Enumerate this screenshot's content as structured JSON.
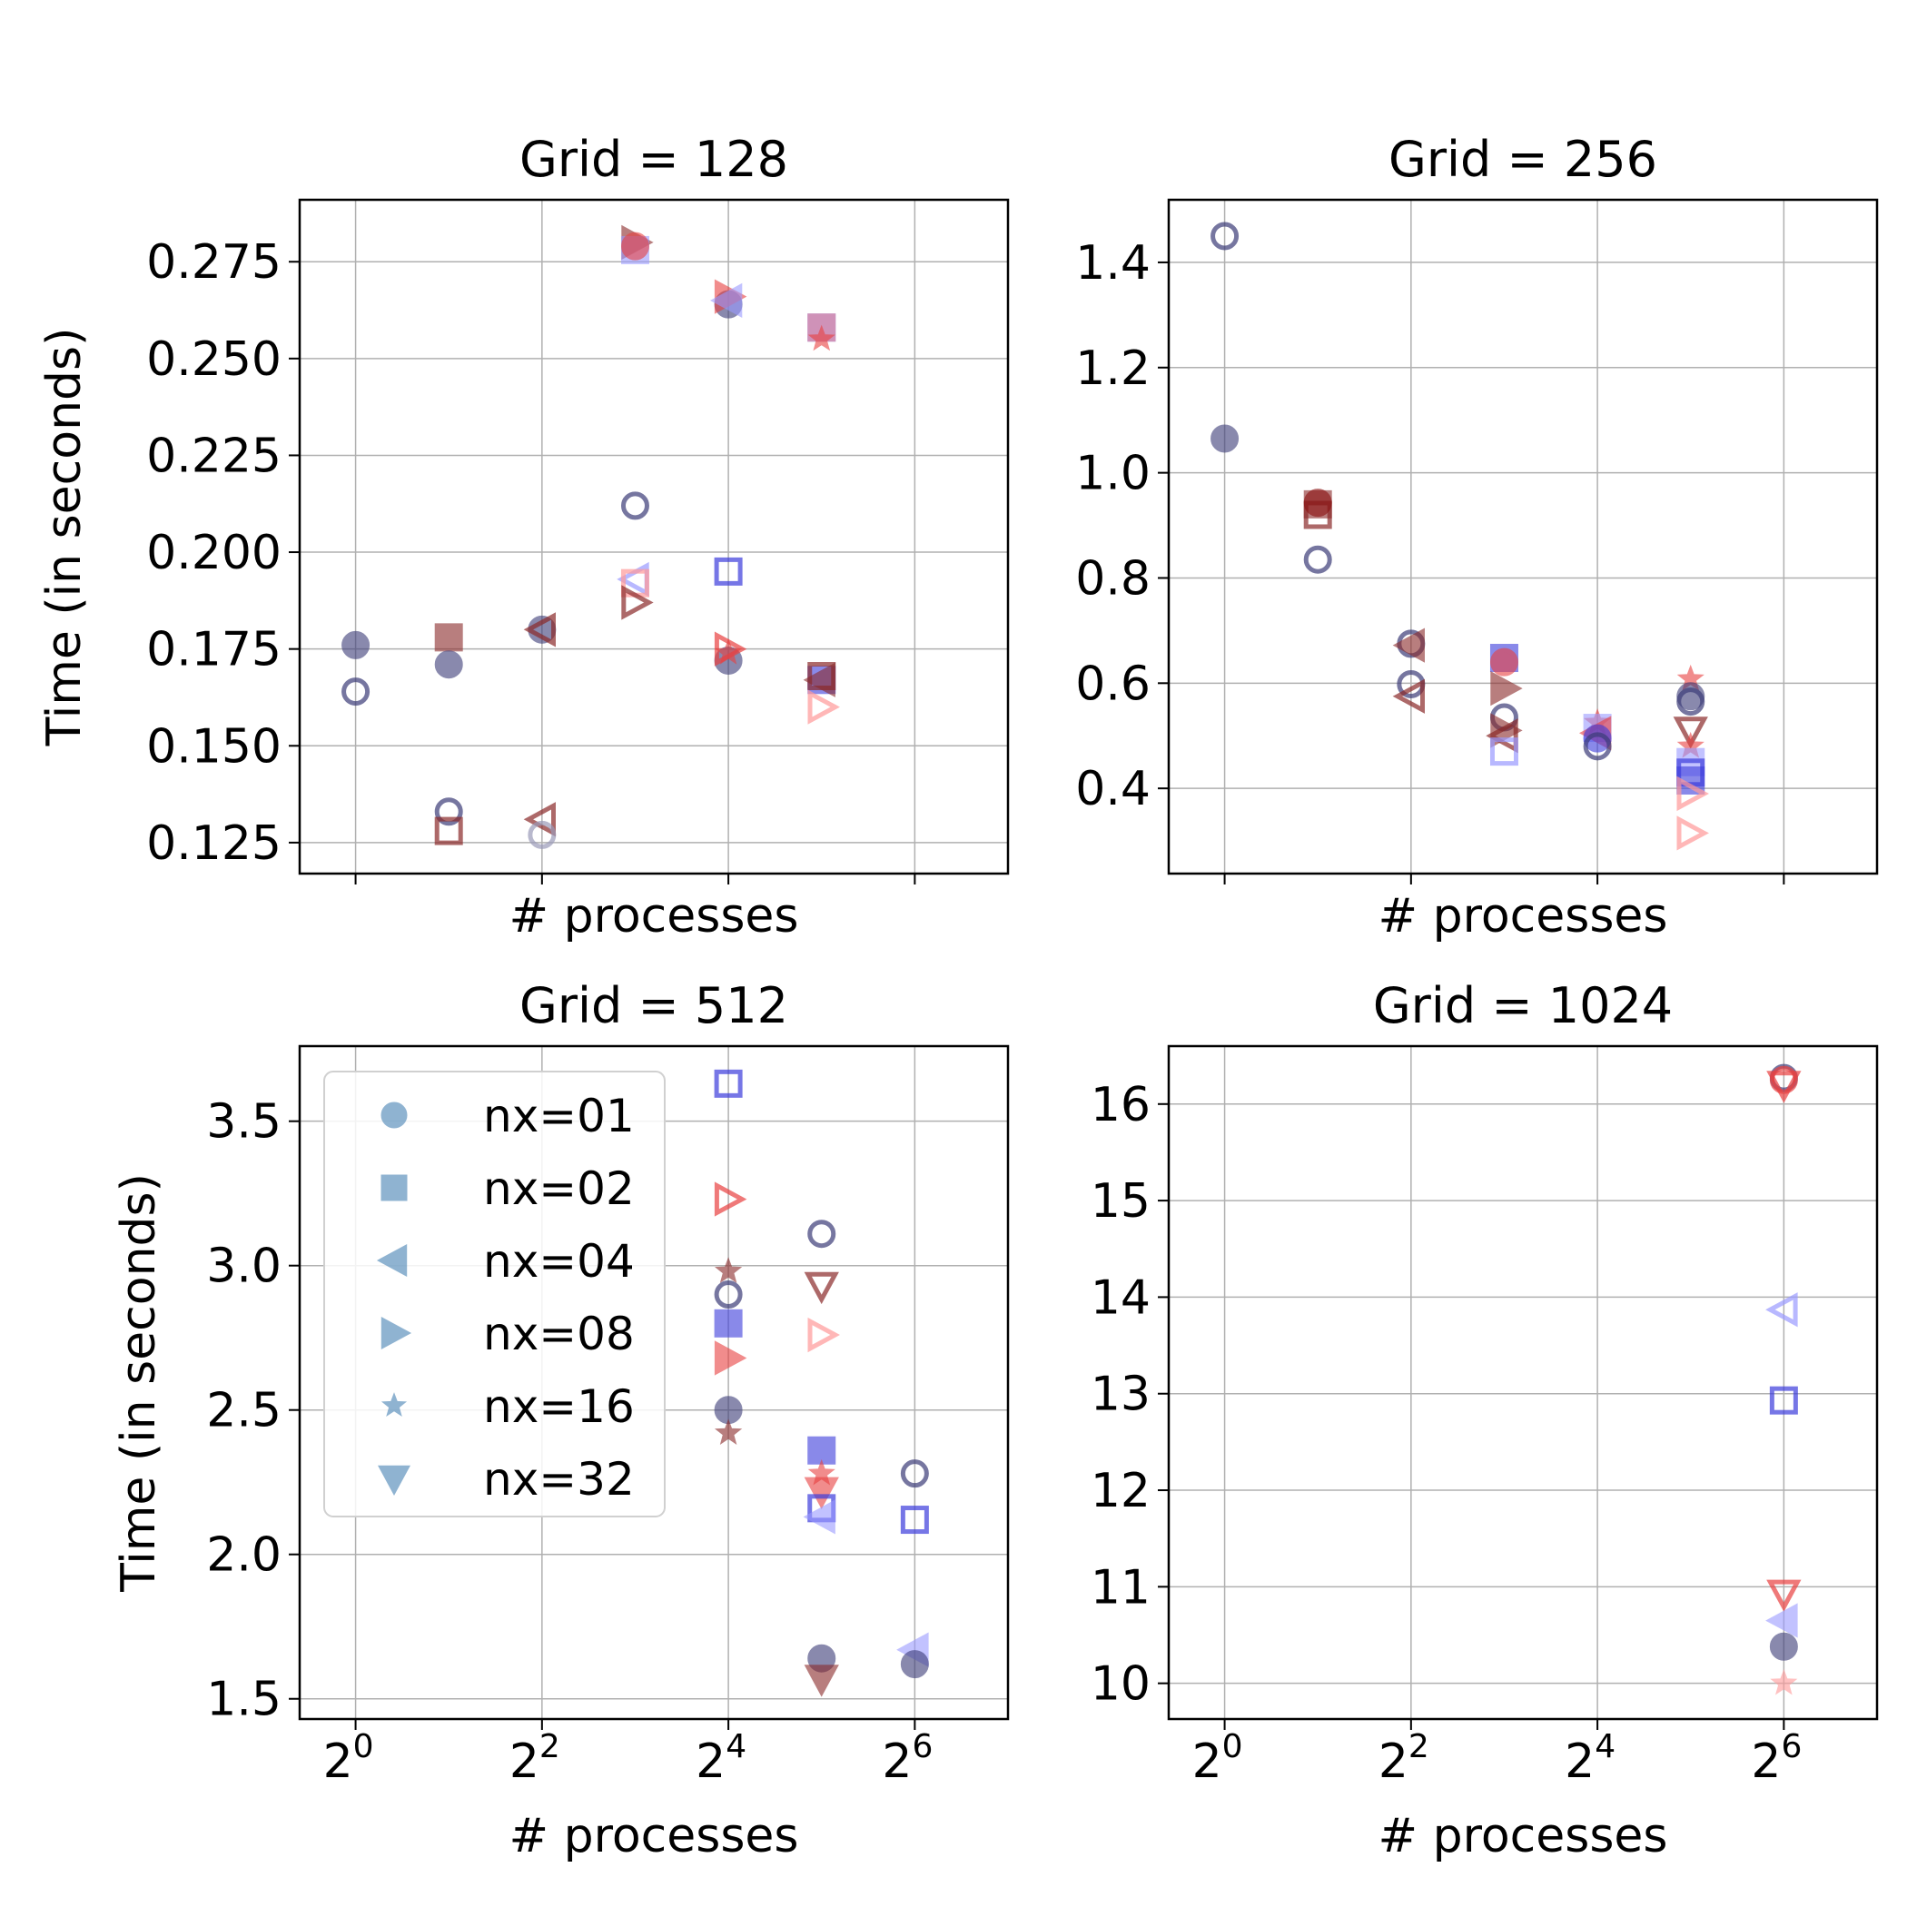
{
  "colors": {
    "circle": "#3c3c78",
    "square": "#3c3cdc",
    "tri_left": "#8a2a2a",
    "tri_right": "#e84040",
    "star": "#d23a3a",
    "tri_down": "#8a2a2a",
    "pink": "#ff9999",
    "legend": "#4682b4",
    "lavender": "#9a9aff"
  },
  "legend": {
    "entries": [
      {
        "label": "nx=01",
        "marker": "circle"
      },
      {
        "label": "nx=02",
        "marker": "square"
      },
      {
        "label": "nx=04",
        "marker": "tri_left"
      },
      {
        "label": "nx=08",
        "marker": "tri_right"
      },
      {
        "label": "nx=16",
        "marker": "star"
      },
      {
        "label": "nx=32",
        "marker": "tri_down"
      }
    ]
  },
  "chart_data": [
    {
      "type": "scatter",
      "title": "Grid = 128",
      "xlabel": "# processes",
      "ylabel": "Time (in seconds)",
      "xscale": "log2",
      "xlim_exp": [
        -0.6,
        7.0
      ],
      "xticks_exp": [
        0,
        2,
        4,
        6
      ],
      "show_xticklabels": false,
      "ylim": [
        0.117,
        0.291
      ],
      "yticks": [
        0.125,
        0.15,
        0.175,
        0.2,
        0.225,
        0.25,
        0.275
      ],
      "ytick_labels": [
        "0.125",
        "0.150",
        "0.175",
        "0.200",
        "0.225",
        "0.250",
        "0.275"
      ],
      "points": [
        {
          "x": 1,
          "y": 0.176,
          "m": "circle",
          "c": "#3c3c78",
          "f": true
        },
        {
          "x": 1,
          "y": 0.164,
          "m": "circle",
          "c": "#3c3c78",
          "f": false
        },
        {
          "x": 2,
          "y": 0.178,
          "m": "square",
          "c": "#8a2a2a",
          "f": true
        },
        {
          "x": 2,
          "y": 0.171,
          "m": "circle",
          "c": "#3c3c78",
          "f": true
        },
        {
          "x": 2,
          "y": 0.133,
          "m": "circle",
          "c": "#3c3c78",
          "f": false
        },
        {
          "x": 2,
          "y": 0.128,
          "m": "square",
          "c": "#8a2a2a",
          "f": false
        },
        {
          "x": 4,
          "y": 0.18,
          "m": "circle",
          "c": "#3c3c78",
          "f": true
        },
        {
          "x": 4,
          "y": 0.18,
          "m": "tri_left",
          "c": "#8a2a2a",
          "f": false
        },
        {
          "x": 4,
          "y": 0.131,
          "m": "tri_left",
          "c": "#8a2a2a",
          "f": false
        },
        {
          "x": 4,
          "y": 0.127,
          "m": "circle",
          "c": "#9a9ab8",
          "f": false
        },
        {
          "x": 8,
          "y": 0.28,
          "m": "tri_right",
          "c": "#8a2a2a",
          "f": true
        },
        {
          "x": 8,
          "y": 0.278,
          "m": "square",
          "c": "#9a9aff",
          "f": true
        },
        {
          "x": 8,
          "y": 0.279,
          "m": "circle",
          "c": "#e84040",
          "f": true
        },
        {
          "x": 8,
          "y": 0.212,
          "m": "circle",
          "c": "#3c3c78",
          "f": false
        },
        {
          "x": 8,
          "y": 0.193,
          "m": "tri_left",
          "c": "#9a9aff",
          "f": false
        },
        {
          "x": 8,
          "y": 0.192,
          "m": "square",
          "c": "#ff9999",
          "f": false
        },
        {
          "x": 8,
          "y": 0.187,
          "m": "tri_right",
          "c": "#8a2a2a",
          "f": false
        },
        {
          "x": 16,
          "y": 0.264,
          "m": "circle",
          "c": "#3c3c78",
          "f": true
        },
        {
          "x": 16,
          "y": 0.266,
          "m": "tri_right",
          "c": "#e84040",
          "f": true
        },
        {
          "x": 16,
          "y": 0.265,
          "m": "tri_left",
          "c": "#9a9aff",
          "f": true
        },
        {
          "x": 16,
          "y": 0.195,
          "m": "square",
          "c": "#3c3cdc",
          "f": false
        },
        {
          "x": 16,
          "y": 0.172,
          "m": "circle",
          "c": "#3c3c78",
          "f": true
        },
        {
          "x": 16,
          "y": 0.174,
          "m": "star",
          "c": "#e84040",
          "f": true
        },
        {
          "x": 16,
          "y": 0.175,
          "m": "tri_right",
          "c": "#e84040",
          "f": false
        },
        {
          "x": 32,
          "y": 0.258,
          "m": "square",
          "c": "#3c3cdc",
          "f": true
        },
        {
          "x": 32,
          "y": 0.258,
          "m": "square",
          "c": "#ff9999",
          "f": true
        },
        {
          "x": 32,
          "y": 0.255,
          "m": "star",
          "c": "#e84040",
          "f": true
        },
        {
          "x": 32,
          "y": 0.167,
          "m": "square",
          "c": "#3c3cdc",
          "f": true
        },
        {
          "x": 32,
          "y": 0.168,
          "m": "square",
          "c": "#8a2a2a",
          "f": false
        },
        {
          "x": 32,
          "y": 0.167,
          "m": "tri_left",
          "c": "#8a2a2a",
          "f": true
        },
        {
          "x": 32,
          "y": 0.16,
          "m": "tri_right",
          "c": "#ff9999",
          "f": false
        }
      ]
    },
    {
      "type": "scatter",
      "title": "Grid = 256",
      "xlabel": "# processes",
      "ylabel": "",
      "xscale": "log2",
      "xlim_exp": [
        -0.6,
        7.0
      ],
      "xticks_exp": [
        0,
        2,
        4,
        6
      ],
      "show_xticklabels": false,
      "ylim": [
        0.238,
        1.519
      ],
      "yticks": [
        0.4,
        0.6,
        0.8,
        1.0,
        1.2,
        1.4
      ],
      "ytick_labels": [
        "0.4",
        "0.6",
        "0.8",
        "1.0",
        "1.2",
        "1.4"
      ],
      "points": [
        {
          "x": 1,
          "y": 1.45,
          "m": "circle",
          "c": "#3c3c78",
          "f": false
        },
        {
          "x": 1,
          "y": 1.065,
          "m": "circle",
          "c": "#3c3c78",
          "f": true
        },
        {
          "x": 2,
          "y": 0.94,
          "m": "square",
          "c": "#8a2a2a",
          "f": true
        },
        {
          "x": 2,
          "y": 0.92,
          "m": "square",
          "c": "#8a2a2a",
          "f": false
        },
        {
          "x": 2,
          "y": 0.943,
          "m": "circle",
          "c": "#8a1010",
          "f": true
        },
        {
          "x": 2,
          "y": 0.835,
          "m": "circle",
          "c": "#3c3c78",
          "f": false
        },
        {
          "x": 4,
          "y": 0.675,
          "m": "circle",
          "c": "#3c3c78",
          "f": false
        },
        {
          "x": 4,
          "y": 0.672,
          "m": "tri_left",
          "c": "#8a2a2a",
          "f": true
        },
        {
          "x": 4,
          "y": 0.598,
          "m": "circle",
          "c": "#3c3c78",
          "f": false
        },
        {
          "x": 4,
          "y": 0.575,
          "m": "tri_left",
          "c": "#8a2a2a",
          "f": false
        },
        {
          "x": 8,
          "y": 0.648,
          "m": "square",
          "c": "#3c3cdc",
          "f": true
        },
        {
          "x": 8,
          "y": 0.64,
          "m": "circle",
          "c": "#e84040",
          "f": true
        },
        {
          "x": 8,
          "y": 0.59,
          "m": "tri_right",
          "c": "#8a2a2a",
          "f": true
        },
        {
          "x": 8,
          "y": 0.535,
          "m": "circle",
          "c": "#3c3c78",
          "f": false
        },
        {
          "x": 8,
          "y": 0.51,
          "m": "tri_right",
          "c": "#8a2a2a",
          "f": true
        },
        {
          "x": 8,
          "y": 0.5,
          "m": "tri_left",
          "c": "#8a2a2a",
          "f": false
        },
        {
          "x": 8,
          "y": 0.47,
          "m": "square",
          "c": "#9a9aff",
          "f": false
        },
        {
          "x": 16,
          "y": 0.525,
          "m": "star",
          "c": "#e84040",
          "f": true
        },
        {
          "x": 16,
          "y": 0.515,
          "m": "square",
          "c": "#9a9aff",
          "f": true
        },
        {
          "x": 16,
          "y": 0.505,
          "m": "tri_left",
          "c": "#e84040",
          "f": true
        },
        {
          "x": 16,
          "y": 0.495,
          "m": "circle",
          "c": "#3c3cdc",
          "f": true
        },
        {
          "x": 16,
          "y": 0.48,
          "m": "circle",
          "c": "#3c3c78",
          "f": false
        },
        {
          "x": 32,
          "y": 0.608,
          "m": "star",
          "c": "#e84040",
          "f": true
        },
        {
          "x": 32,
          "y": 0.575,
          "m": "circle",
          "c": "#3c3c78",
          "f": true
        },
        {
          "x": 32,
          "y": 0.565,
          "m": "circle",
          "c": "#3c3c78",
          "f": false
        },
        {
          "x": 32,
          "y": 0.51,
          "m": "tri_down",
          "c": "#8a2a2a",
          "f": false
        },
        {
          "x": 32,
          "y": 0.48,
          "m": "star",
          "c": "#e84040",
          "f": true
        },
        {
          "x": 32,
          "y": 0.45,
          "m": "square",
          "c": "#9a9aff",
          "f": true
        },
        {
          "x": 32,
          "y": 0.43,
          "m": "square",
          "c": "#3c3cdc",
          "f": false
        },
        {
          "x": 32,
          "y": 0.415,
          "m": "square",
          "c": "#3c3cdc",
          "f": true
        },
        {
          "x": 32,
          "y": 0.39,
          "m": "tri_right",
          "c": "#ff9999",
          "f": false
        },
        {
          "x": 32,
          "y": 0.315,
          "m": "tri_right",
          "c": "#ff9999",
          "f": false
        }
      ]
    },
    {
      "type": "scatter",
      "title": "Grid = 512",
      "xlabel": "# processes",
      "ylabel": "Time (in seconds)",
      "xscale": "log2",
      "xlim_exp": [
        -0.6,
        7.0
      ],
      "xticks_exp": [
        0,
        2,
        4,
        6
      ],
      "show_xticklabels": true,
      "xtick_base": "2",
      "xtick_exps": [
        "0",
        "2",
        "4",
        "6"
      ],
      "ylim": [
        1.43,
        3.76
      ],
      "yticks": [
        1.5,
        2.0,
        2.5,
        3.0,
        3.5
      ],
      "ytick_labels": [
        "1.5",
        "2.0",
        "2.5",
        "3.0",
        "3.5"
      ],
      "points": [
        {
          "x": 16,
          "y": 3.63,
          "m": "square",
          "c": "#3c3cdc",
          "f": false
        },
        {
          "x": 16,
          "y": 3.23,
          "m": "tri_right",
          "c": "#e84040",
          "f": false
        },
        {
          "x": 16,
          "y": 2.98,
          "m": "star",
          "c": "#8a2a2a",
          "f": true
        },
        {
          "x": 16,
          "y": 2.9,
          "m": "circle",
          "c": "#3c3c78",
          "f": false
        },
        {
          "x": 16,
          "y": 2.8,
          "m": "square",
          "c": "#3c3cdc",
          "f": true
        },
        {
          "x": 16,
          "y": 2.68,
          "m": "tri_right",
          "c": "#e84040",
          "f": true
        },
        {
          "x": 16,
          "y": 2.5,
          "m": "circle",
          "c": "#3c3c78",
          "f": true
        },
        {
          "x": 16,
          "y": 2.42,
          "m": "star",
          "c": "#8a2a2a",
          "f": true
        },
        {
          "x": 32,
          "y": 3.11,
          "m": "circle",
          "c": "#3c3c78",
          "f": false
        },
        {
          "x": 32,
          "y": 2.93,
          "m": "tri_down",
          "c": "#8a2a2a",
          "f": false
        },
        {
          "x": 32,
          "y": 2.76,
          "m": "tri_right",
          "c": "#ff9999",
          "f": false
        },
        {
          "x": 32,
          "y": 2.36,
          "m": "square",
          "c": "#3c3cdc",
          "f": true
        },
        {
          "x": 32,
          "y": 2.28,
          "m": "star",
          "c": "#e84040",
          "f": true
        },
        {
          "x": 32,
          "y": 2.22,
          "m": "tri_down",
          "c": "#e84040",
          "f": true
        },
        {
          "x": 32,
          "y": 2.16,
          "m": "square",
          "c": "#3c3cdc",
          "f": false
        },
        {
          "x": 32,
          "y": 2.13,
          "m": "tri_left",
          "c": "#9a9aff",
          "f": true
        },
        {
          "x": 32,
          "y": 1.64,
          "m": "circle",
          "c": "#3c3c78",
          "f": true
        },
        {
          "x": 32,
          "y": 1.57,
          "m": "tri_down",
          "c": "#8a2a2a",
          "f": true
        },
        {
          "x": 64,
          "y": 2.28,
          "m": "circle",
          "c": "#3c3c78",
          "f": false
        },
        {
          "x": 64,
          "y": 2.12,
          "m": "square",
          "c": "#3c3cdc",
          "f": false
        },
        {
          "x": 64,
          "y": 1.67,
          "m": "tri_left",
          "c": "#9a9aff",
          "f": true
        },
        {
          "x": 64,
          "y": 1.62,
          "m": "circle",
          "c": "#3c3c78",
          "f": true
        }
      ]
    },
    {
      "type": "scatter",
      "title": "Grid = 1024",
      "xlabel": "# processes",
      "ylabel": "",
      "xscale": "log2",
      "xlim_exp": [
        -0.6,
        7.0
      ],
      "xticks_exp": [
        0,
        2,
        4,
        6
      ],
      "show_xticklabels": true,
      "xtick_base": "2",
      "xtick_exps": [
        "0",
        "2",
        "4",
        "6"
      ],
      "ylim": [
        9.63,
        16.6
      ],
      "yticks": [
        10,
        11,
        12,
        13,
        14,
        15,
        16
      ],
      "ytick_labels": [
        "10",
        "11",
        "12",
        "13",
        "14",
        "15",
        "16"
      ],
      "points": [
        {
          "x": 64,
          "y": 16.27,
          "m": "circle",
          "c": "#3c3c78",
          "f": false
        },
        {
          "x": 64,
          "y": 16.25,
          "m": "circle",
          "c": "#e84040",
          "f": false
        },
        {
          "x": 64,
          "y": 16.2,
          "m": "tri_down",
          "c": "#e84040",
          "f": false
        },
        {
          "x": 64,
          "y": 13.87,
          "m": "tri_left",
          "c": "#9a9aff",
          "f": false
        },
        {
          "x": 64,
          "y": 12.93,
          "m": "square",
          "c": "#3c3cdc",
          "f": false
        },
        {
          "x": 64,
          "y": 10.93,
          "m": "tri_down",
          "c": "#e84040",
          "f": false
        },
        {
          "x": 64,
          "y": 10.65,
          "m": "tri_left",
          "c": "#9a9aff",
          "f": true
        },
        {
          "x": 64,
          "y": 10.38,
          "m": "circle",
          "c": "#3c3c78",
          "f": true
        },
        {
          "x": 64,
          "y": 10.0,
          "m": "star",
          "c": "#ff9999",
          "f": true
        }
      ]
    }
  ]
}
